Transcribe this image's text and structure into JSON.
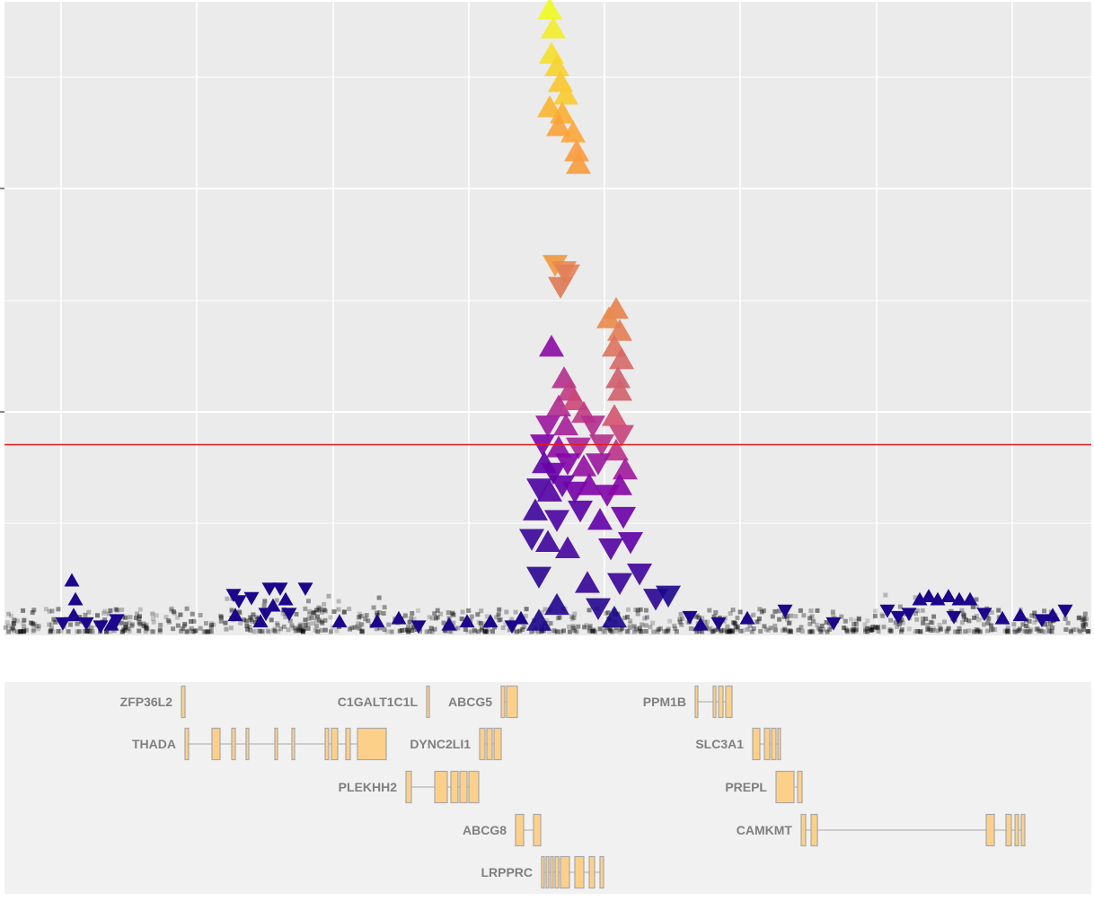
{
  "chart_data": {
    "type": "scatter",
    "title": "",
    "xlabel": "",
    "ylabel": "",
    "x_range": [
      0,
      1218
    ],
    "y_range": [
      0,
      20
    ],
    "grid": true,
    "legend": "none",
    "ref_line": {
      "y": 5.94,
      "color": "#e41a1c"
    },
    "colors": {
      "panel_bg": "#ebebeb",
      "gene_track_bg": "#f1f1f1",
      "grid": "#ffffff",
      "exon_fill": "#fdd08a",
      "exon_stroke": "#a8a8a8",
      "background_point": "#000000"
    },
    "hit_points": [
      {
        "x": 612,
        "y": 19.7,
        "dir": "up",
        "c": "#f0f921"
      },
      {
        "x": 616,
        "y": 19.1,
        "dir": "up",
        "c": "#f3ed2a"
      },
      {
        "x": 614,
        "y": 18.3,
        "dir": "up",
        "c": "#f5e02e"
      },
      {
        "x": 620,
        "y": 17.9,
        "dir": "up",
        "c": "#f7d32f"
      },
      {
        "x": 624,
        "y": 17.4,
        "dir": "up",
        "c": "#f9c62f"
      },
      {
        "x": 630,
        "y": 17.0,
        "dir": "up",
        "c": "#f9cc30"
      },
      {
        "x": 612,
        "y": 16.6,
        "dir": "up",
        "c": "#fbb532"
      },
      {
        "x": 626,
        "y": 16.4,
        "dir": "up",
        "c": "#fcae34"
      },
      {
        "x": 638,
        "y": 15.8,
        "dir": "up",
        "c": "#fca636"
      },
      {
        "x": 622,
        "y": 16.0,
        "dir": "up",
        "c": "#fca23a"
      },
      {
        "x": 642,
        "y": 15.2,
        "dir": "up",
        "c": "#fb9b3d"
      },
      {
        "x": 644,
        "y": 14.8,
        "dir": "up",
        "c": "#fa9b3d"
      },
      {
        "x": 618,
        "y": 11.7,
        "dir": "down",
        "c": "#f0993f"
      },
      {
        "x": 628,
        "y": 11.5,
        "dir": "down",
        "c": "#e88a4e"
      },
      {
        "x": 624,
        "y": 11.0,
        "dir": "down",
        "c": "#de7a57"
      },
      {
        "x": 632,
        "y": 11.4,
        "dir": "down",
        "c": "#e2805a"
      },
      {
        "x": 686,
        "y": 10.2,
        "dir": "up",
        "c": "#e8824f"
      },
      {
        "x": 678,
        "y": 9.9,
        "dir": "up",
        "c": "#ea8a4a"
      },
      {
        "x": 690,
        "y": 9.5,
        "dir": "up",
        "c": "#e37d58"
      },
      {
        "x": 684,
        "y": 9.0,
        "dir": "up",
        "c": "#de735f"
      },
      {
        "x": 692,
        "y": 8.6,
        "dir": "up",
        "c": "#d66868"
      },
      {
        "x": 688,
        "y": 8.0,
        "dir": "up",
        "c": "#cd5f6d"
      },
      {
        "x": 690,
        "y": 7.6,
        "dir": "up",
        "c": "#d0626a"
      },
      {
        "x": 614,
        "y": 9.0,
        "dir": "up",
        "c": "#8b0aa5"
      },
      {
        "x": 628,
        "y": 8.0,
        "dir": "up",
        "c": "#b52f8c"
      },
      {
        "x": 634,
        "y": 7.6,
        "dir": "up",
        "c": "#c23c81"
      },
      {
        "x": 622,
        "y": 7.1,
        "dir": "up",
        "c": "#b02a8f"
      },
      {
        "x": 640,
        "y": 7.3,
        "dir": "up",
        "c": "#cc4778"
      },
      {
        "x": 650,
        "y": 6.9,
        "dir": "up",
        "c": "#c13b82"
      },
      {
        "x": 610,
        "y": 6.6,
        "dir": "down",
        "c": "#9c179e"
      },
      {
        "x": 630,
        "y": 6.5,
        "dir": "up",
        "c": "#a62098"
      },
      {
        "x": 660,
        "y": 6.6,
        "dir": "down",
        "c": "#b42e8d"
      },
      {
        "x": 684,
        "y": 6.8,
        "dir": "up",
        "c": "#d5536f"
      },
      {
        "x": 692,
        "y": 6.3,
        "dir": "down",
        "c": "#c8437b"
      },
      {
        "x": 604,
        "y": 6.0,
        "dir": "down",
        "c": "#7e03a8"
      },
      {
        "x": 622,
        "y": 5.8,
        "dir": "up",
        "c": "#8f0da4"
      },
      {
        "x": 644,
        "y": 5.9,
        "dir": "down",
        "c": "#a82296"
      },
      {
        "x": 670,
        "y": 6.0,
        "dir": "down",
        "c": "#b5308b"
      },
      {
        "x": 686,
        "y": 5.7,
        "dir": "up",
        "c": "#ba3388"
      },
      {
        "x": 606,
        "y": 5.3,
        "dir": "up",
        "c": "#5c01a6"
      },
      {
        "x": 616,
        "y": 5.1,
        "dir": "down",
        "c": "#6a00a8"
      },
      {
        "x": 632,
        "y": 5.4,
        "dir": "down",
        "c": "#8405a7"
      },
      {
        "x": 650,
        "y": 5.2,
        "dir": "up",
        "c": "#9511a1"
      },
      {
        "x": 666,
        "y": 5.4,
        "dir": "down",
        "c": "#9a169f"
      },
      {
        "x": 696,
        "y": 5.1,
        "dir": "up",
        "c": "#a01a9c"
      },
      {
        "x": 600,
        "y": 4.6,
        "dir": "down",
        "c": "#4c02a1"
      },
      {
        "x": 612,
        "y": 4.4,
        "dir": "up",
        "c": "#5302a3"
      },
      {
        "x": 626,
        "y": 4.7,
        "dir": "down",
        "c": "#6300a7"
      },
      {
        "x": 640,
        "y": 4.5,
        "dir": "down",
        "c": "#7201a8"
      },
      {
        "x": 656,
        "y": 4.6,
        "dir": "up",
        "c": "#7e03a8"
      },
      {
        "x": 676,
        "y": 4.4,
        "dir": "down",
        "c": "#8004a8"
      },
      {
        "x": 690,
        "y": 4.6,
        "dir": "up",
        "c": "#8606a6"
      },
      {
        "x": 596,
        "y": 3.8,
        "dir": "up",
        "c": "#3e049c"
      },
      {
        "x": 620,
        "y": 3.6,
        "dir": "down",
        "c": "#4a02a0"
      },
      {
        "x": 646,
        "y": 3.9,
        "dir": "down",
        "c": "#5601a4"
      },
      {
        "x": 668,
        "y": 3.5,
        "dir": "up",
        "c": "#6100a7"
      },
      {
        "x": 694,
        "y": 3.7,
        "dir": "down",
        "c": "#6b00a8"
      },
      {
        "x": 592,
        "y": 3.0,
        "dir": "down",
        "c": "#3a049a"
      },
      {
        "x": 610,
        "y": 2.8,
        "dir": "up",
        "c": "#3e049c"
      },
      {
        "x": 632,
        "y": 2.6,
        "dir": "up",
        "c": "#47039f"
      },
      {
        "x": 680,
        "y": 2.7,
        "dir": "down",
        "c": "#5402a3"
      },
      {
        "x": 702,
        "y": 2.9,
        "dir": "down",
        "c": "#5c01a6"
      },
      {
        "x": 600,
        "y": 1.8,
        "dir": "down",
        "c": "#2a0593"
      },
      {
        "x": 654,
        "y": 1.5,
        "dir": "up",
        "c": "#350498"
      },
      {
        "x": 690,
        "y": 1.6,
        "dir": "down",
        "c": "#3a049a"
      },
      {
        "x": 712,
        "y": 1.9,
        "dir": "down",
        "c": "#3e049c"
      },
      {
        "x": 620,
        "y": 0.8,
        "dir": "up",
        "c": "#22068f"
      },
      {
        "x": 666,
        "y": 0.8,
        "dir": "down",
        "c": "#26068f"
      },
      {
        "x": 730,
        "y": 1.1,
        "dir": "down",
        "c": "#2a0593"
      },
      {
        "x": 744,
        "y": 1.2,
        "dir": "down",
        "c": "#1d068e"
      },
      {
        "x": 600,
        "y": 0.3,
        "dir": "up",
        "c": "#1a068c"
      },
      {
        "x": 684,
        "y": 0.4,
        "dir": "up",
        "c": "#1a068c"
      }
    ],
    "low_points": [
      {
        "x": 80,
        "y": 1.6,
        "dir": "up"
      },
      {
        "x": 84,
        "y": 1.0,
        "dir": "up"
      },
      {
        "x": 82,
        "y": 0.5,
        "dir": "up"
      },
      {
        "x": 70,
        "y": 0.3,
        "dir": "down"
      },
      {
        "x": 96,
        "y": 0.3,
        "dir": "down"
      },
      {
        "x": 112,
        "y": 0.2,
        "dir": "down"
      },
      {
        "x": 130,
        "y": 0.4,
        "dir": "down"
      },
      {
        "x": 124,
        "y": 0.2,
        "dir": "up"
      },
      {
        "x": 260,
        "y": 1.2,
        "dir": "down"
      },
      {
        "x": 266,
        "y": 1.0,
        "dir": "down"
      },
      {
        "x": 280,
        "y": 1.1,
        "dir": "down"
      },
      {
        "x": 300,
        "y": 1.4,
        "dir": "down"
      },
      {
        "x": 312,
        "y": 1.4,
        "dir": "down"
      },
      {
        "x": 318,
        "y": 1.0,
        "dir": "up"
      },
      {
        "x": 304,
        "y": 0.8,
        "dir": "up"
      },
      {
        "x": 296,
        "y": 0.6,
        "dir": "down"
      },
      {
        "x": 322,
        "y": 0.6,
        "dir": "down"
      },
      {
        "x": 340,
        "y": 1.4,
        "dir": "down"
      },
      {
        "x": 262,
        "y": 0.5,
        "dir": "up"
      },
      {
        "x": 290,
        "y": 0.3,
        "dir": "up"
      },
      {
        "x": 378,
        "y": 0.3,
        "dir": "up"
      },
      {
        "x": 420,
        "y": 0.3,
        "dir": "up"
      },
      {
        "x": 444,
        "y": 0.4,
        "dir": "up"
      },
      {
        "x": 466,
        "y": 0.2,
        "dir": "down"
      },
      {
        "x": 500,
        "y": 0.2,
        "dir": "up"
      },
      {
        "x": 520,
        "y": 0.3,
        "dir": "up"
      },
      {
        "x": 546,
        "y": 0.3,
        "dir": "up"
      },
      {
        "x": 570,
        "y": 0.2,
        "dir": "down"
      },
      {
        "x": 580,
        "y": 0.4,
        "dir": "up"
      },
      {
        "x": 768,
        "y": 0.5,
        "dir": "down"
      },
      {
        "x": 780,
        "y": 0.2,
        "dir": "up"
      },
      {
        "x": 800,
        "y": 0.3,
        "dir": "down"
      },
      {
        "x": 832,
        "y": 0.4,
        "dir": "up"
      },
      {
        "x": 874,
        "y": 0.7,
        "dir": "down"
      },
      {
        "x": 928,
        "y": 0.3,
        "dir": "down"
      },
      {
        "x": 988,
        "y": 0.7,
        "dir": "down"
      },
      {
        "x": 1000,
        "y": 0.5,
        "dir": "down"
      },
      {
        "x": 1012,
        "y": 0.6,
        "dir": "down"
      },
      {
        "x": 1024,
        "y": 1.0,
        "dir": "up"
      },
      {
        "x": 1034,
        "y": 1.1,
        "dir": "up"
      },
      {
        "x": 1044,
        "y": 1.0,
        "dir": "up"
      },
      {
        "x": 1056,
        "y": 1.1,
        "dir": "up"
      },
      {
        "x": 1068,
        "y": 1.0,
        "dir": "up"
      },
      {
        "x": 1080,
        "y": 1.0,
        "dir": "up"
      },
      {
        "x": 1062,
        "y": 0.5,
        "dir": "down"
      },
      {
        "x": 1096,
        "y": 0.6,
        "dir": "down"
      },
      {
        "x": 1116,
        "y": 0.4,
        "dir": "up"
      },
      {
        "x": 1136,
        "y": 0.5,
        "dir": "up"
      },
      {
        "x": 1160,
        "y": 0.4,
        "dir": "down"
      },
      {
        "x": 1172,
        "y": 0.5,
        "dir": "up"
      },
      {
        "x": 1186,
        "y": 0.7,
        "dir": "down"
      }
    ],
    "genes": [
      {
        "name": "ZFP36L2",
        "row": 0,
        "start": 202,
        "end": 206,
        "exons": [
          [
            202,
            206
          ]
        ]
      },
      {
        "name": "THADA",
        "row": 1,
        "start": 206,
        "end": 430,
        "exons": [
          [
            206,
            210
          ],
          [
            236,
            245
          ],
          [
            258,
            262
          ],
          [
            274,
            277
          ],
          [
            306,
            309
          ],
          [
            325,
            328
          ],
          [
            362,
            366
          ],
          [
            369,
            376
          ],
          [
            385,
            390
          ],
          [
            398,
            430
          ]
        ]
      },
      {
        "name": "C1GALT1C1L",
        "row": 0,
        "start": 475,
        "end": 478,
        "exons": [
          [
            475,
            478
          ]
        ]
      },
      {
        "name": "ABCG5",
        "row": 0,
        "start": 558,
        "end": 576,
        "exons": [
          [
            558,
            562
          ],
          [
            564,
            576
          ]
        ]
      },
      {
        "name": "DYNC2LI1",
        "row": 1,
        "start": 534,
        "end": 558,
        "exons": [
          [
            534,
            540
          ],
          [
            542,
            548
          ],
          [
            550,
            558
          ]
        ]
      },
      {
        "name": "PLEKHH2",
        "row": 2,
        "start": 452,
        "end": 533,
        "exons": [
          [
            452,
            458
          ],
          [
            484,
            498
          ],
          [
            502,
            510
          ],
          [
            512,
            520
          ],
          [
            522,
            533
          ]
        ]
      },
      {
        "name": "ABCG8",
        "row": 3,
        "start": 574,
        "end": 602,
        "exons": [
          [
            574,
            583
          ],
          [
            594,
            602
          ]
        ]
      },
      {
        "name": "LRPPRC",
        "row": 4,
        "start": 603,
        "end": 672,
        "exons": [
          [
            603,
            606
          ],
          [
            608,
            611
          ],
          [
            613,
            616
          ],
          [
            618,
            622
          ],
          [
            624,
            634
          ],
          [
            640,
            650
          ],
          [
            656,
            662
          ],
          [
            668,
            672
          ]
        ]
      },
      {
        "name": "PPM1B",
        "row": 0,
        "start": 774,
        "end": 815,
        "exons": [
          [
            774,
            777
          ],
          [
            794,
            797
          ],
          [
            800,
            805
          ],
          [
            808,
            815
          ]
        ]
      },
      {
        "name": "SLC3A1",
        "row": 1,
        "start": 838,
        "end": 869,
        "exons": [
          [
            838,
            846
          ],
          [
            851,
            857
          ],
          [
            859,
            864
          ],
          [
            866,
            869
          ]
        ]
      },
      {
        "name": "PREPL",
        "row": 2,
        "start": 864,
        "end": 893,
        "exons": [
          [
            864,
            884
          ],
          [
            888,
            893
          ]
        ]
      },
      {
        "name": "CAMKMT",
        "row": 3,
        "start": 892,
        "end": 1141,
        "exons": [
          [
            892,
            897
          ],
          [
            903,
            910
          ],
          [
            1098,
            1107
          ],
          [
            1120,
            1126
          ],
          [
            1130,
            1134
          ],
          [
            1137,
            1141
          ]
        ]
      }
    ]
  }
}
